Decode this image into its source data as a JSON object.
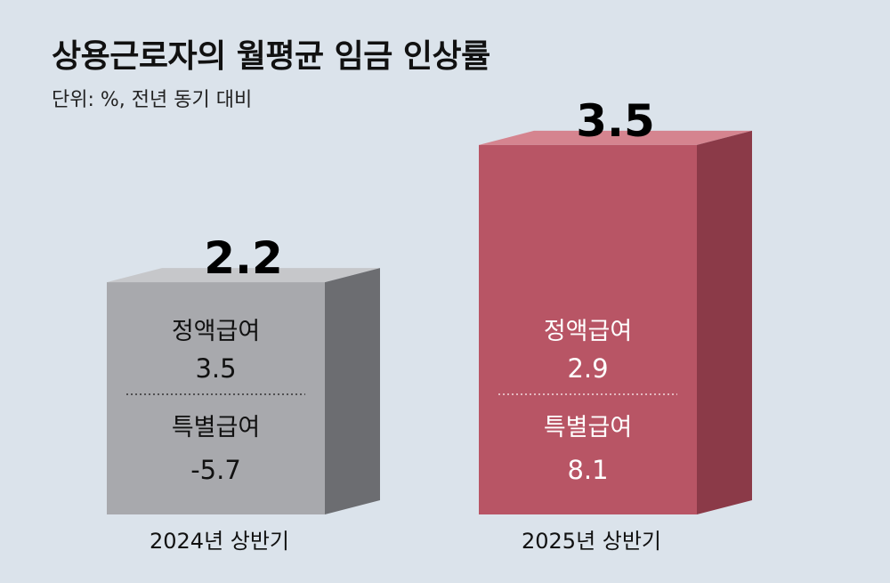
{
  "header": {
    "title": "상용근로자의 월평균 임금 인상률",
    "subtitle": "단위: %, 전년 동기 대비"
  },
  "colors": {
    "background": "#dbe3eb",
    "bar_2024": "#a8a9ad",
    "bar_2024_side": "#6c6d71",
    "bar_2024_top": "#c6c7ca",
    "bar_2025": "#b85565",
    "bar_2025_side": "#8b3a48",
    "bar_2025_top": "#d5848f"
  },
  "chart_data": {
    "type": "bar",
    "title": "상용근로자의 월평균 임금 인상률",
    "subtitle": "단위: %, 전년 동기 대비",
    "categories": [
      "2024년 상반기",
      "2025년 상반기"
    ],
    "values": [
      2.2,
      3.5
    ],
    "value_labels": [
      "2.2",
      "3.5"
    ],
    "breakdown": [
      {
        "regular_label": "정액급여",
        "regular_value": "3.5",
        "special_label": "특별급여",
        "special_value": "-5.7"
      },
      {
        "regular_label": "정액급여",
        "regular_value": "2.9",
        "special_label": "특별급여",
        "special_value": "8.1"
      }
    ]
  }
}
